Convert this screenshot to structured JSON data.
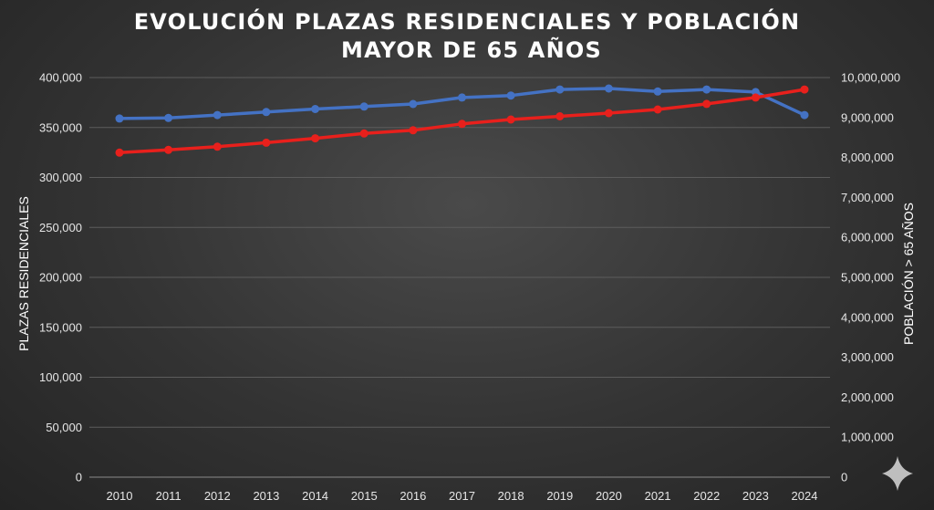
{
  "chart_data": {
    "type": "line",
    "title_lines": [
      "EVOLUCIÓN PLAZAS RESIDENCIALES Y  POBLACIÓN",
      "MAYOR DE 65 AÑOS"
    ],
    "ylabel_left": "PLAZAS RESIDENCIALES",
    "ylabel_right": "POBLACIÓN > 65 AÑOS",
    "ylim_left": [
      0,
      400000
    ],
    "ylim_right": [
      0,
      10000000
    ],
    "yticks_left": [
      "0",
      "50,000",
      "100,000",
      "150,000",
      "200,000",
      "250,000",
      "300,000",
      "350,000",
      "400,000"
    ],
    "yticks_right": [
      "0",
      "1,000,000",
      "2,000,000",
      "3,000,000",
      "4,000,000",
      "5,000,000",
      "6,000,000",
      "7,000,000",
      "8,000,000",
      "9,000,000",
      "10,000,000"
    ],
    "grid": true,
    "categories": [
      "2010",
      "2011",
      "2012",
      "2013",
      "2014",
      "2015",
      "2016",
      "2017",
      "2018",
      "2019",
      "2020",
      "2021",
      "2022",
      "2023",
      "2024"
    ],
    "series": [
      {
        "axis": "left",
        "color": "#4472c4",
        "values": [
          359000,
          359500,
          362500,
          365500,
          368500,
          371000,
          373500,
          380000,
          382000,
          388000,
          389000,
          386000,
          388000,
          385500,
          362500
        ]
      },
      {
        "axis": "right",
        "color": "#e8201c",
        "values": [
          8120000,
          8190000,
          8270000,
          8370000,
          8480000,
          8600000,
          8680000,
          8840000,
          8950000,
          9030000,
          9110000,
          9200000,
          9340000,
          9500000,
          9700000
        ]
      }
    ]
  },
  "watermark": {
    "icon": "sparkle-icon",
    "color": "#cfcfcf"
  }
}
